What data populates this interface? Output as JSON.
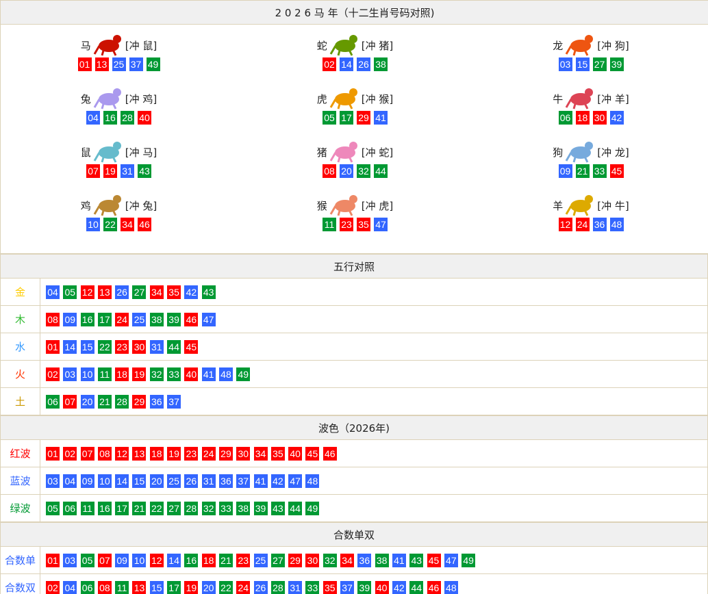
{
  "colors": {
    "red": "#ff0000",
    "blue": "#3366ff",
    "green": "#009933"
  },
  "zodiac": {
    "title": "2 0 2 6 马 年（十二生肖号码对照)",
    "items": [
      {
        "name": "马",
        "clash": "[冲 鼠]",
        "icon": "horse-icon",
        "tint": "#cc1100",
        "nums": [
          "01",
          "13",
          "25",
          "37",
          "49"
        ]
      },
      {
        "name": "蛇",
        "clash": "[冲 猪]",
        "icon": "snake-icon",
        "tint": "#669900",
        "nums": [
          "02",
          "14",
          "26",
          "38"
        ]
      },
      {
        "name": "龙",
        "clash": "[冲 狗]",
        "icon": "dragon-icon",
        "tint": "#ee5511",
        "nums": [
          "03",
          "15",
          "27",
          "39"
        ]
      },
      {
        "name": "兔",
        "clash": "[冲 鸡]",
        "icon": "rabbit-icon",
        "tint": "#aa99ee",
        "nums": [
          "04",
          "16",
          "28",
          "40"
        ]
      },
      {
        "name": "虎",
        "clash": "[冲 猴]",
        "icon": "tiger-icon",
        "tint": "#ee9900",
        "nums": [
          "05",
          "17",
          "29",
          "41"
        ]
      },
      {
        "name": "牛",
        "clash": "[冲 羊]",
        "icon": "ox-icon",
        "tint": "#dd4455",
        "nums": [
          "06",
          "18",
          "30",
          "42"
        ]
      },
      {
        "name": "鼠",
        "clash": "[冲 马]",
        "icon": "rat-icon",
        "tint": "#66bbcc",
        "nums": [
          "07",
          "19",
          "31",
          "43"
        ]
      },
      {
        "name": "猪",
        "clash": "[冲 蛇]",
        "icon": "pig-icon",
        "tint": "#ee88bb",
        "nums": [
          "08",
          "20",
          "32",
          "44"
        ]
      },
      {
        "name": "狗",
        "clash": "[冲 龙]",
        "icon": "dog-icon",
        "tint": "#77aadd",
        "nums": [
          "09",
          "21",
          "33",
          "45"
        ]
      },
      {
        "name": "鸡",
        "clash": "[冲 兔]",
        "icon": "rooster-icon",
        "tint": "#bb8833",
        "nums": [
          "10",
          "22",
          "34",
          "46"
        ]
      },
      {
        "name": "猴",
        "clash": "[冲 虎]",
        "icon": "monkey-icon",
        "tint": "#ee8866",
        "nums": [
          "11",
          "23",
          "35",
          "47"
        ]
      },
      {
        "name": "羊",
        "clash": "[冲 牛]",
        "icon": "goat-icon",
        "tint": "#ddaa00",
        "nums": [
          "12",
          "24",
          "36",
          "48"
        ]
      }
    ]
  },
  "wuxing": {
    "title": "五行对照",
    "rows": [
      {
        "label": "金",
        "color": "#ffcc00",
        "nums": [
          "04",
          "05",
          "12",
          "13",
          "26",
          "27",
          "34",
          "35",
          "42",
          "43"
        ]
      },
      {
        "label": "木",
        "color": "#33bb33",
        "nums": [
          "08",
          "09",
          "16",
          "17",
          "24",
          "25",
          "38",
          "39",
          "46",
          "47"
        ]
      },
      {
        "label": "水",
        "color": "#3399ff",
        "nums": [
          "01",
          "14",
          "15",
          "22",
          "23",
          "30",
          "31",
          "44",
          "45"
        ]
      },
      {
        "label": "火",
        "color": "#ff3300",
        "nums": [
          "02",
          "03",
          "10",
          "11",
          "18",
          "19",
          "32",
          "33",
          "40",
          "41",
          "48",
          "49"
        ]
      },
      {
        "label": "土",
        "color": "#cc9900",
        "nums": [
          "06",
          "07",
          "20",
          "21",
          "28",
          "29",
          "36",
          "37"
        ]
      }
    ]
  },
  "bose": {
    "title": "波色（2026年)",
    "rows": [
      {
        "label": "红波",
        "color": "#ff0000",
        "nums": [
          "01",
          "02",
          "07",
          "08",
          "12",
          "13",
          "18",
          "19",
          "23",
          "24",
          "29",
          "30",
          "34",
          "35",
          "40",
          "45",
          "46"
        ]
      },
      {
        "label": "蓝波",
        "color": "#3366ff",
        "nums": [
          "03",
          "04",
          "09",
          "10",
          "14",
          "15",
          "20",
          "25",
          "26",
          "31",
          "36",
          "37",
          "41",
          "42",
          "47",
          "48"
        ]
      },
      {
        "label": "绿波",
        "color": "#009933",
        "nums": [
          "05",
          "06",
          "11",
          "16",
          "17",
          "21",
          "22",
          "27",
          "28",
          "32",
          "33",
          "38",
          "39",
          "43",
          "44",
          "49"
        ]
      }
    ]
  },
  "heshu": {
    "title": "合数单双",
    "rows": [
      {
        "label": "合数单",
        "color": "#3366ff",
        "nums": [
          "01",
          "03",
          "05",
          "07",
          "09",
          "10",
          "12",
          "14",
          "16",
          "18",
          "21",
          "23",
          "25",
          "27",
          "29",
          "30",
          "32",
          "34",
          "36",
          "38",
          "41",
          "43",
          "45",
          "47",
          "49"
        ]
      },
      {
        "label": "合数双",
        "color": "#3366ff",
        "nums": [
          "02",
          "04",
          "06",
          "08",
          "11",
          "13",
          "15",
          "17",
          "19",
          "20",
          "22",
          "24",
          "26",
          "28",
          "31",
          "33",
          "35",
          "37",
          "39",
          "40",
          "42",
          "44",
          "46",
          "48"
        ]
      }
    ]
  }
}
